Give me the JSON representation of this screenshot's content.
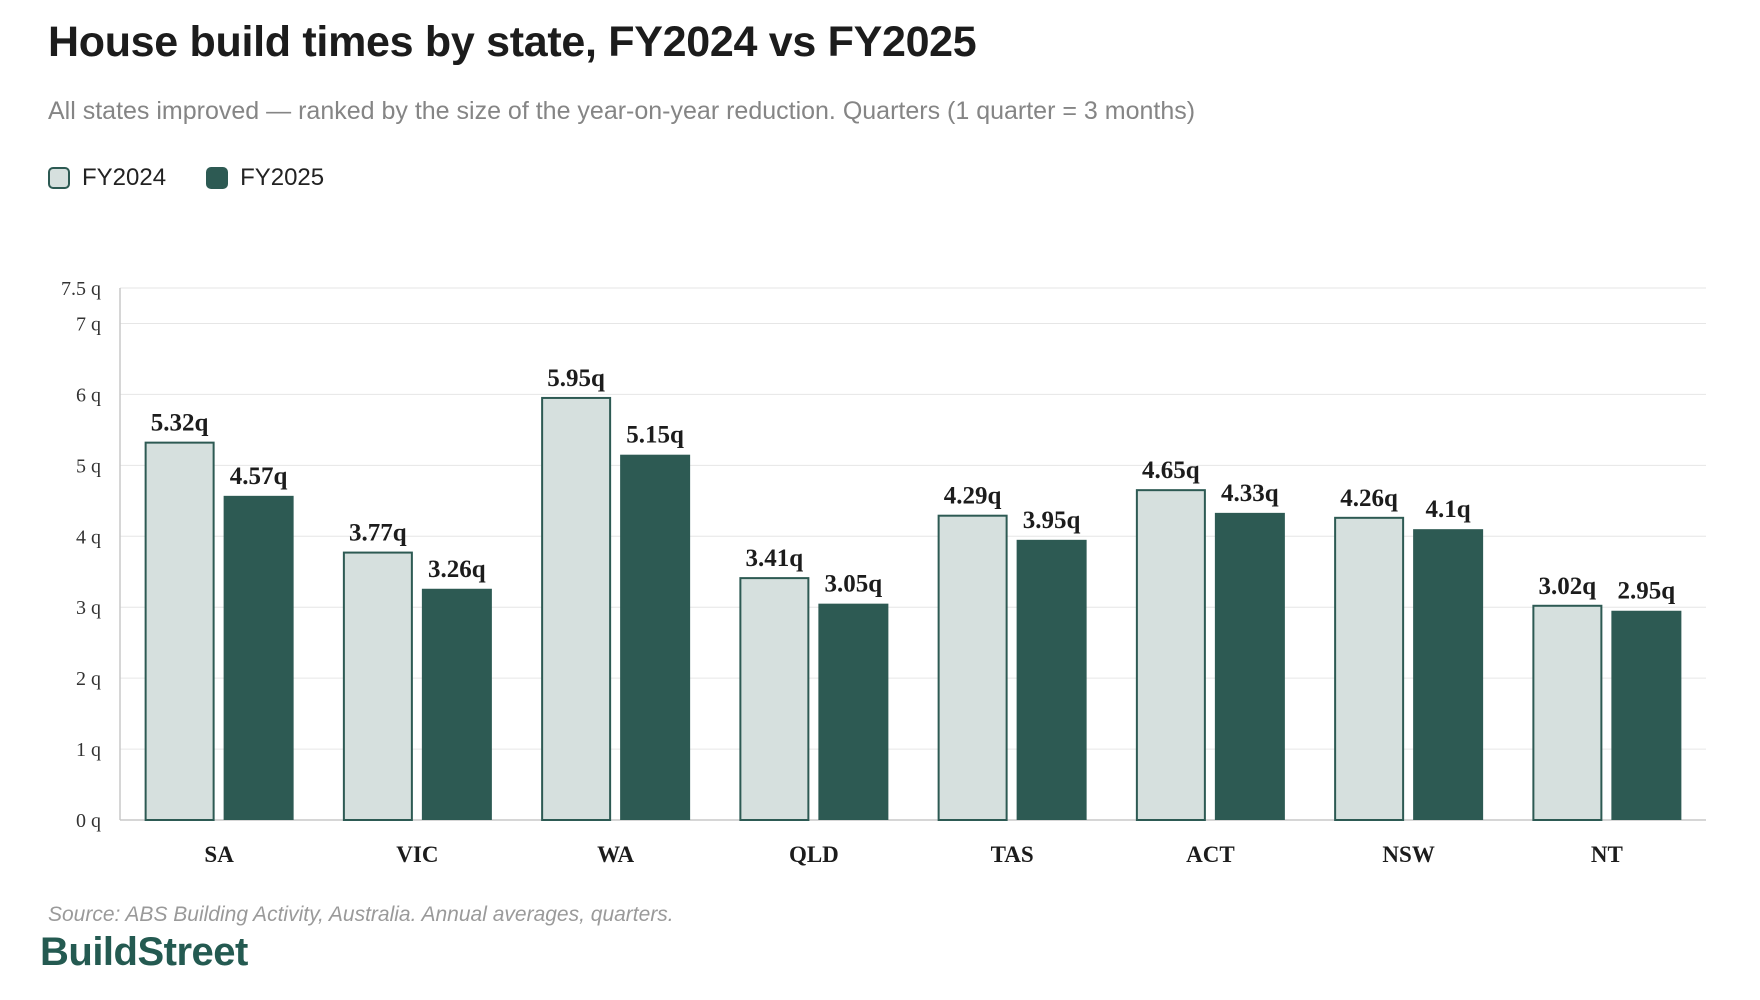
{
  "title": "House build times by state, FY2024 vs FY2025",
  "subtitle": "All states improved — ranked by the size of the year-on-year reduction. Quarters (1 quarter = 3 months)",
  "source": "Source: ABS Building Activity, Australia. Annual averages, quarters.",
  "brand": "BuildStreet",
  "colors": {
    "fy2024_fill": "#d6e0de",
    "fy2024_stroke": "#2d5a53",
    "fy2025_fill": "#2d5a53",
    "grid": "#e6e6e6",
    "axis": "#c8c8c8"
  },
  "chart_data": {
    "type": "bar",
    "categories": [
      "SA",
      "VIC",
      "WA",
      "QLD",
      "TAS",
      "ACT",
      "NSW",
      "NT"
    ],
    "series": [
      {
        "name": "FY2024",
        "values": [
          5.32,
          3.77,
          5.95,
          3.41,
          4.29,
          4.65,
          4.26,
          3.02
        ],
        "labels": [
          "5.32q",
          "3.77q",
          "5.95q",
          "3.41q",
          "4.29q",
          "4.65q",
          "4.26q",
          "3.02q"
        ]
      },
      {
        "name": "FY2025",
        "values": [
          4.57,
          3.26,
          5.15,
          3.05,
          3.95,
          4.33,
          4.1,
          2.95
        ],
        "labels": [
          "4.57q",
          "3.26q",
          "5.15q",
          "3.05q",
          "3.95q",
          "4.33q",
          "4.1q",
          "2.95q"
        ]
      }
    ],
    "yticks": [
      0,
      1,
      2,
      3,
      4,
      5,
      6,
      7,
      7.5
    ],
    "ytick_labels": [
      "0 q",
      "1 q",
      "2 q",
      "3 q",
      "4 q",
      "5 q",
      "6 q",
      "7 q",
      "7.5 q"
    ],
    "ylim": [
      0,
      7.5
    ],
    "grid": true,
    "legend_position": "top-left"
  }
}
